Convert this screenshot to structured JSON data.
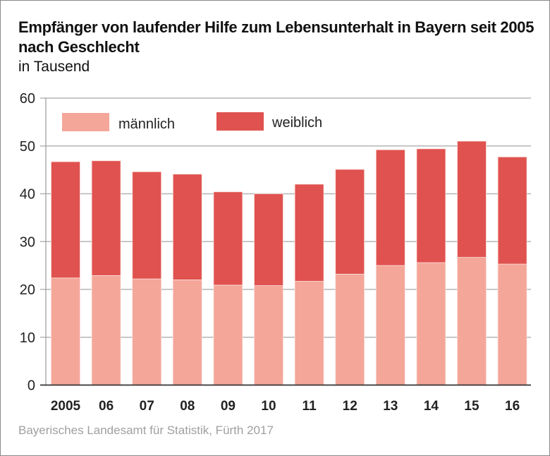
{
  "title": "Empfänger von laufender Hilfe zum Lebensunterhalt in Bayern seit 2005 nach Geschlecht",
  "subtitle": "in Tausend",
  "source": "Bayerisches Landesamt für Statistik, Fürth 2017",
  "colors": {
    "maennlich": "#f4a699",
    "weiblich": "#e0524f",
    "grid": "#b5b5b5",
    "axis": "#333333"
  },
  "chart_data": {
    "type": "bar",
    "stacked": true,
    "title": "Empfänger von laufender Hilfe zum Lebensunterhalt in Bayern seit 2005 nach Geschlecht",
    "subtitle": "in Tausend",
    "xlabel": "",
    "ylabel": "",
    "categories": [
      "2005",
      "06",
      "07",
      "08",
      "09",
      "10",
      "11",
      "12",
      "13",
      "14",
      "15",
      "16"
    ],
    "series": [
      {
        "name": "männlich",
        "values": [
          22.4,
          22.9,
          22.2,
          22.0,
          20.9,
          20.8,
          21.7,
          23.2,
          25.0,
          25.6,
          26.7,
          25.3
        ]
      },
      {
        "name": "weiblich",
        "values": [
          24.3,
          24.0,
          22.4,
          22.1,
          19.5,
          19.2,
          20.3,
          21.9,
          24.2,
          23.8,
          24.3,
          22.4
        ]
      }
    ],
    "ylim": [
      0,
      60
    ],
    "yticks": [
      0,
      10,
      20,
      30,
      40,
      50,
      60
    ],
    "grid": true,
    "legend": {
      "placement": "top-left",
      "entries": [
        "männlich",
        "weiblich"
      ]
    }
  }
}
